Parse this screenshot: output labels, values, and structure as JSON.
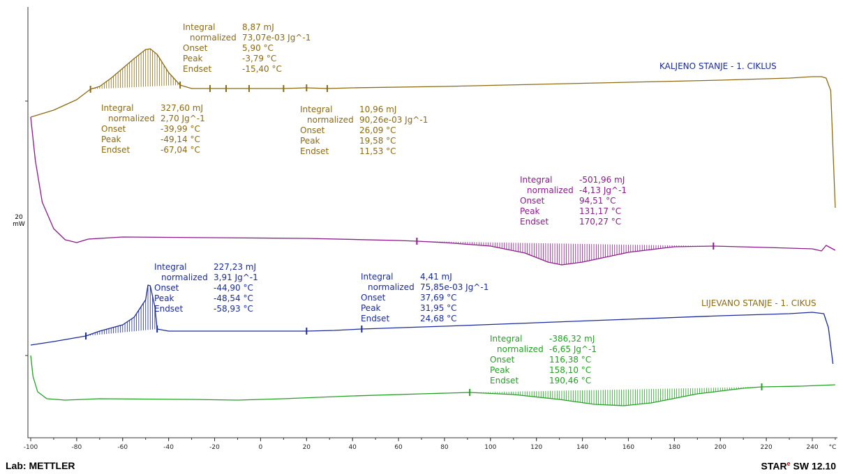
{
  "chart_data": {
    "type": "line",
    "xlabel": "°C",
    "x_ticks": [
      -100,
      -80,
      -60,
      -40,
      -20,
      0,
      20,
      40,
      60,
      80,
      100,
      120,
      140,
      160,
      180,
      200,
      220,
      240
    ],
    "xlim": [
      -100,
      250
    ],
    "y_scale_label": "20",
    "y_scale_unit": "mW",
    "series": [
      {
        "name": "KALJENO STANJE - 1. CIKLUS",
        "color": "#8B6A14",
        "points": [
          [
            -100,
            168
          ],
          [
            -90,
            158
          ],
          [
            -80,
            143
          ],
          [
            -74,
            128
          ],
          [
            -70,
            124
          ],
          [
            -65,
            112
          ],
          [
            -60,
            98
          ],
          [
            -55,
            84
          ],
          [
            -50,
            71
          ],
          [
            -48,
            70
          ],
          [
            -45,
            78
          ],
          [
            -40,
            104
          ],
          [
            -35,
            122
          ],
          [
            -30,
            127
          ],
          [
            -20,
            127
          ],
          [
            0,
            127
          ],
          [
            10,
            127
          ],
          [
            20,
            126
          ],
          [
            29,
            127
          ],
          [
            40,
            126
          ],
          [
            80,
            124
          ],
          [
            120,
            121
          ],
          [
            160,
            118
          ],
          [
            200,
            115
          ],
          [
            230,
            112
          ],
          [
            240,
            110
          ],
          [
            244,
            110
          ],
          [
            246,
            112
          ],
          [
            248,
            130
          ],
          [
            250,
            298
          ]
        ]
      },
      {
        "name": "",
        "color": "#8B1A8B",
        "points": [
          [
            -100,
            168
          ],
          [
            -98,
            230
          ],
          [
            -95,
            290
          ],
          [
            -90,
            328
          ],
          [
            -85,
            344
          ],
          [
            -80,
            348
          ],
          [
            -75,
            343
          ],
          [
            -60,
            340
          ],
          [
            -20,
            341
          ],
          [
            20,
            342
          ],
          [
            60,
            345
          ],
          [
            68,
            346
          ],
          [
            80,
            348
          ],
          [
            100,
            353
          ],
          [
            115,
            363
          ],
          [
            125,
            376
          ],
          [
            131,
            380
          ],
          [
            140,
            376
          ],
          [
            160,
            362
          ],
          [
            180,
            354
          ],
          [
            197,
            353
          ],
          [
            220,
            355
          ],
          [
            240,
            357
          ],
          [
            244,
            360
          ],
          [
            246,
            352
          ],
          [
            250,
            359
          ]
        ]
      },
      {
        "name": "LIJEVANO STANJE - 1. CIKUS",
        "color": "#1A2A9B",
        "points": [
          [
            -100,
            495
          ],
          [
            -90,
            490
          ],
          [
            -76,
            482
          ],
          [
            -70,
            475
          ],
          [
            -60,
            466
          ],
          [
            -55,
            455
          ],
          [
            -50,
            430
          ],
          [
            -49,
            409
          ],
          [
            -48,
            410
          ],
          [
            -46,
            440
          ],
          [
            -45,
            472
          ],
          [
            -40,
            475
          ],
          [
            -30,
            475
          ],
          [
            -10,
            475
          ],
          [
            20,
            475
          ],
          [
            32,
            474
          ],
          [
            44,
            472
          ],
          [
            80,
            468
          ],
          [
            120,
            463
          ],
          [
            160,
            458
          ],
          [
            200,
            453
          ],
          [
            230,
            450
          ],
          [
            240,
            448
          ],
          [
            245,
            450
          ],
          [
            247,
            470
          ],
          [
            249,
            522
          ]
        ]
      },
      {
        "name": "",
        "color": "#21A121",
        "points": [
          [
            -100,
            510
          ],
          [
            -99,
            540
          ],
          [
            -97,
            562
          ],
          [
            -93,
            572
          ],
          [
            -85,
            574
          ],
          [
            -70,
            572
          ],
          [
            -30,
            573
          ],
          [
            -10,
            574
          ],
          [
            10,
            572
          ],
          [
            40,
            568
          ],
          [
            70,
            565
          ],
          [
            91,
            563
          ],
          [
            110,
            566
          ],
          [
            130,
            573
          ],
          [
            145,
            580
          ],
          [
            158,
            582
          ],
          [
            170,
            578
          ],
          [
            190,
            565
          ],
          [
            210,
            557
          ],
          [
            218,
            555
          ],
          [
            235,
            554
          ],
          [
            250,
            552
          ]
        ]
      }
    ],
    "annotations": [
      {
        "color": "#8B6A14",
        "values": [
          "8,87 mJ",
          "73,07e-03 Jg^-1",
          "5,90 °C",
          "-3,79 °C",
          "-15,40 °C"
        ]
      },
      {
        "color": "#8B6A14",
        "values": [
          "327,60 mJ",
          "2,70 Jg^-1",
          "-39,99 °C",
          "-49,14 °C",
          "-67,04 °C"
        ]
      },
      {
        "color": "#8B6A14",
        "values": [
          "10,96 mJ",
          "90,26e-03 Jg^-1",
          "26,09 °C",
          "19,58 °C",
          "11,53 °C"
        ]
      },
      {
        "color": "#8B1A8B",
        "values": [
          "-501,96 mJ",
          "-4,13 Jg^-1",
          "94,51 °C",
          "131,17 °C",
          "170,27 °C"
        ]
      },
      {
        "color": "#1A2A9B",
        "values": [
          "227,23 mJ",
          "3,91 Jg^-1",
          "-44,90 °C",
          "-48,54 °C",
          "-58,93 °C"
        ]
      },
      {
        "color": "#1A2A9B",
        "values": [
          "4,41 mJ",
          "75,85e-03 Jg^-1",
          "37,69 °C",
          "31,95 °C",
          "24,68 °C"
        ]
      },
      {
        "color": "#21A121",
        "values": [
          "-386,32 mJ",
          "-6,65 Jg^-1",
          "116,38 °C",
          "158,10 °C",
          "190,46 °C"
        ]
      }
    ],
    "annotation_labels": [
      "Integral",
      "normalized",
      "Onset",
      "Peak",
      "Endset"
    ],
    "grid": false
  },
  "footer": {
    "left": "Lab: METTLER",
    "right_star": "STAR",
    "right_sup": "e",
    "right_rest": " SW 12.10"
  }
}
